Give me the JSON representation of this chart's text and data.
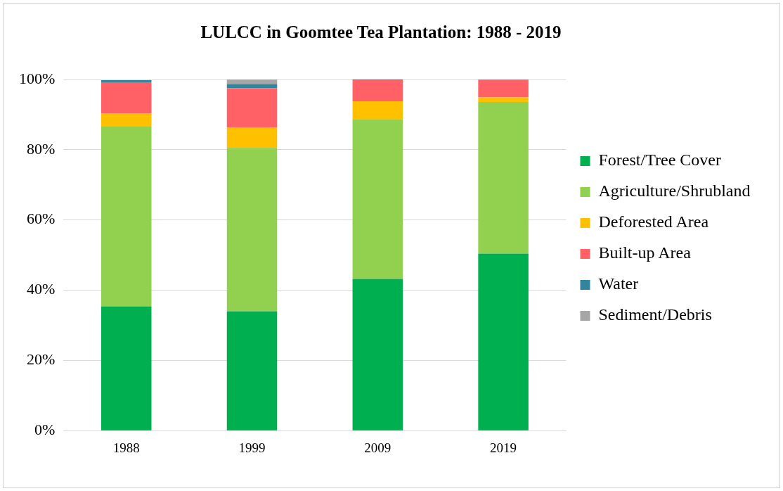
{
  "chart_data": {
    "type": "bar",
    "stacked": true,
    "title": "LULCC in Goomtee Tea Plantation: 1988 - 2019",
    "categories": [
      "1988",
      "1999",
      "2009",
      "2019"
    ],
    "series": [
      {
        "name": "Forest/Tree Cover",
        "color": "#00b050",
        "values": [
          35.4,
          34.0,
          43.2,
          50.4
        ]
      },
      {
        "name": "Agriculture/Shrubland",
        "color": "#92d050",
        "values": [
          51.2,
          46.5,
          45.4,
          43.2
        ]
      },
      {
        "name": "Deforested Area",
        "color": "#ffc000",
        "values": [
          3.7,
          5.9,
          5.2,
          1.3
        ]
      },
      {
        "name": "Built-up Area",
        "color": "#ff6166",
        "values": [
          8.9,
          11.1,
          6.0,
          5.1
        ]
      },
      {
        "name": "Water",
        "color": "#31859c",
        "values": [
          0.6,
          1.2,
          0.2,
          0
        ]
      },
      {
        "name": "Sediment/Debris",
        "color": "#a6a6a6",
        "values": [
          null,
          1.3,
          0,
          0
        ]
      }
    ],
    "ylim": [
      0,
      100
    ],
    "yticks": [
      {
        "value": 0,
        "label": "0%"
      },
      {
        "value": 20,
        "label": "20%"
      },
      {
        "value": 40,
        "label": "40%"
      },
      {
        "value": 60,
        "label": "60%"
      },
      {
        "value": 80,
        "label": "80%"
      },
      {
        "value": 100,
        "label": "100%"
      }
    ],
    "grid": "y",
    "legend": "right"
  }
}
